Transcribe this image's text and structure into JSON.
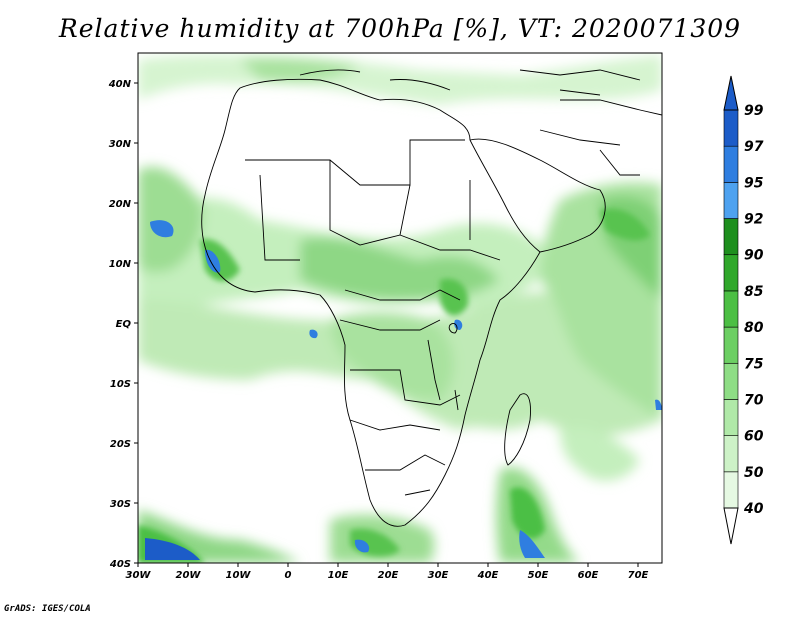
{
  "title": "Relative humidity at 700hPa [%], VT: 2020071309",
  "credit": "GrADS: IGES/COLA",
  "lat_labels": [
    "40N",
    "30N",
    "20N",
    "10N",
    "EQ",
    "10S",
    "20S",
    "30S",
    "40S"
  ],
  "lon_labels": [
    "30W",
    "20W",
    "10W",
    "0",
    "10E",
    "20E",
    "30E",
    "40E",
    "50E",
    "60E",
    "70E"
  ],
  "colorbar": {
    "levels": [
      "40",
      "50",
      "60",
      "70",
      "75",
      "80",
      "85",
      "90",
      "92",
      "95",
      "97",
      "99"
    ],
    "colors": [
      "#ffffff",
      "#e6f9e3",
      "#cdf2c7",
      "#b0e9a8",
      "#8edd85",
      "#6ccf63",
      "#4cbf44",
      "#30a82b",
      "#1e8f1e",
      "#4ea2f0",
      "#2f7ee0",
      "#1c5cc8"
    ]
  }
}
